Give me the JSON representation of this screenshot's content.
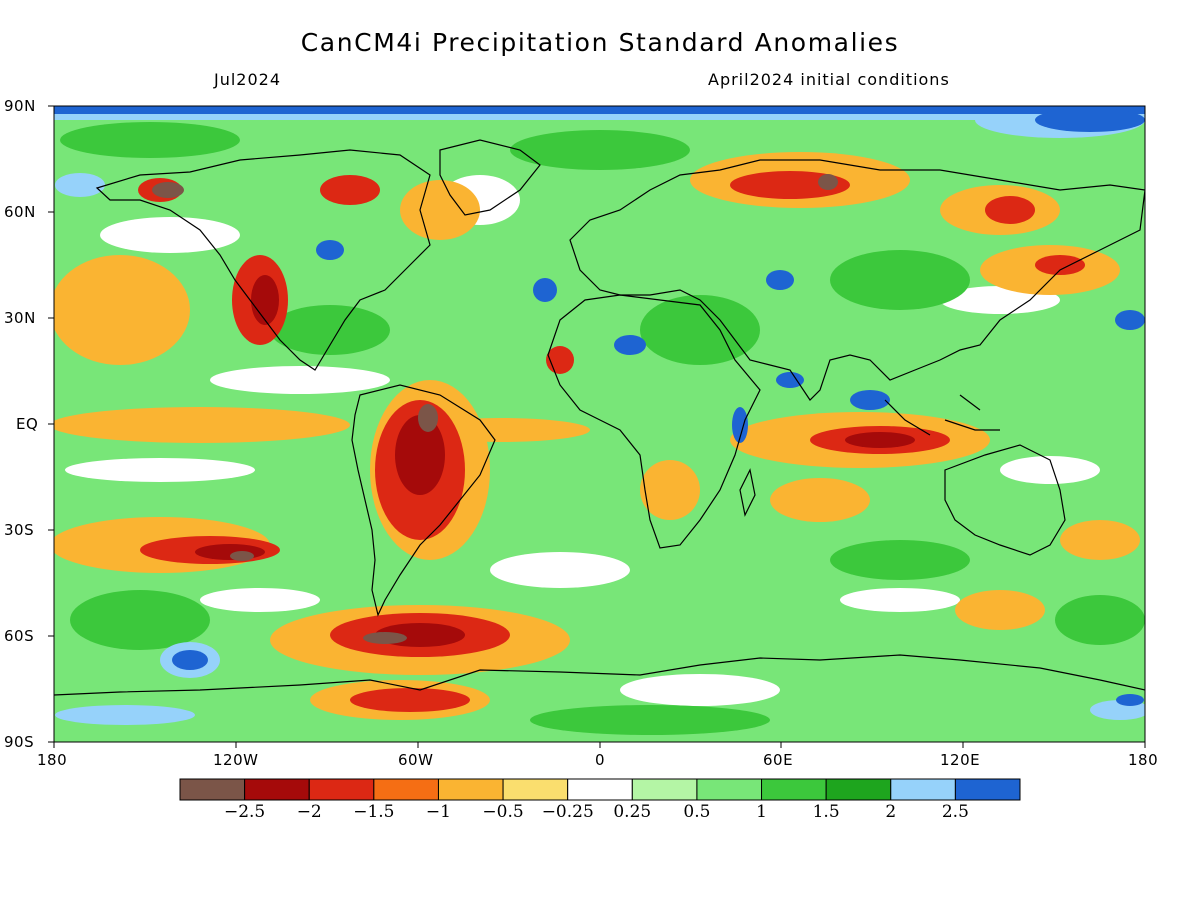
{
  "title": "CanCM4i Precipitation Standard Anomalies",
  "valid_month": "Jul2024",
  "init_text": "April2024 initial conditions",
  "lat_labels": [
    "90N",
    "60N",
    "30N",
    "EQ",
    "30S",
    "60S",
    "90S"
  ],
  "lon_labels": [
    "180",
    "120W",
    "60W",
    "0",
    "60E",
    "120E",
    "180"
  ],
  "colorbar": {
    "colors": [
      "#7b5548",
      "#a50a0a",
      "#dc2814",
      "#f56e14",
      "#fab432",
      "#fade6e",
      "#ffffff",
      "#b4f5a5",
      "#78e678",
      "#3cc83c",
      "#1ea51e",
      "#96d2fa",
      "#1e64d2"
    ],
    "labels": [
      "-2.5",
      "-2",
      "-1.5",
      "-1",
      "-0.5",
      "-0.25",
      "0.25",
      "0.5",
      "1",
      "1.5",
      "2",
      "2.5"
    ]
  }
}
